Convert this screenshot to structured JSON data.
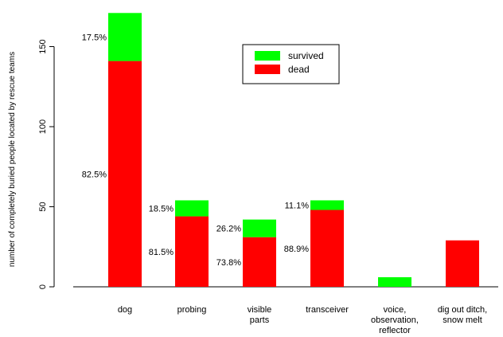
{
  "chart_data": {
    "type": "bar",
    "stacked": true,
    "categories": [
      [
        "dog"
      ],
      [
        "probing"
      ],
      [
        "visible",
        "parts"
      ],
      [
        "transceiver"
      ],
      [
        "voice,",
        "observation,",
        "reflector"
      ],
      [
        "dig out ditch,",
        "snow melt"
      ]
    ],
    "series": [
      {
        "name": "dead",
        "color": "#ff0000",
        "values": [
          141,
          44,
          31,
          48,
          0,
          29
        ]
      },
      {
        "name": "survived",
        "color": "#00ff00",
        "values": [
          30,
          10,
          11,
          6,
          6,
          0
        ]
      }
    ],
    "percent_labels": [
      {
        "dead": "82.5%",
        "survived": "17.5%"
      },
      {
        "dead": "81.5%",
        "survived": "18.5%"
      },
      {
        "dead": "73.8%",
        "survived": "26.2%"
      },
      {
        "dead": "88.9%",
        "survived": "11.1%"
      },
      {
        "dead": "",
        "survived": ""
      },
      {
        "dead": "",
        "survived": ""
      }
    ],
    "ylabel": "number of completely buried people located by rescue teams",
    "yticks": [
      0,
      50,
      100,
      150
    ],
    "ylim": [
      0,
      175
    ],
    "legend": {
      "position": "top-center",
      "order": [
        "survived",
        "dead"
      ]
    },
    "grid": false
  }
}
